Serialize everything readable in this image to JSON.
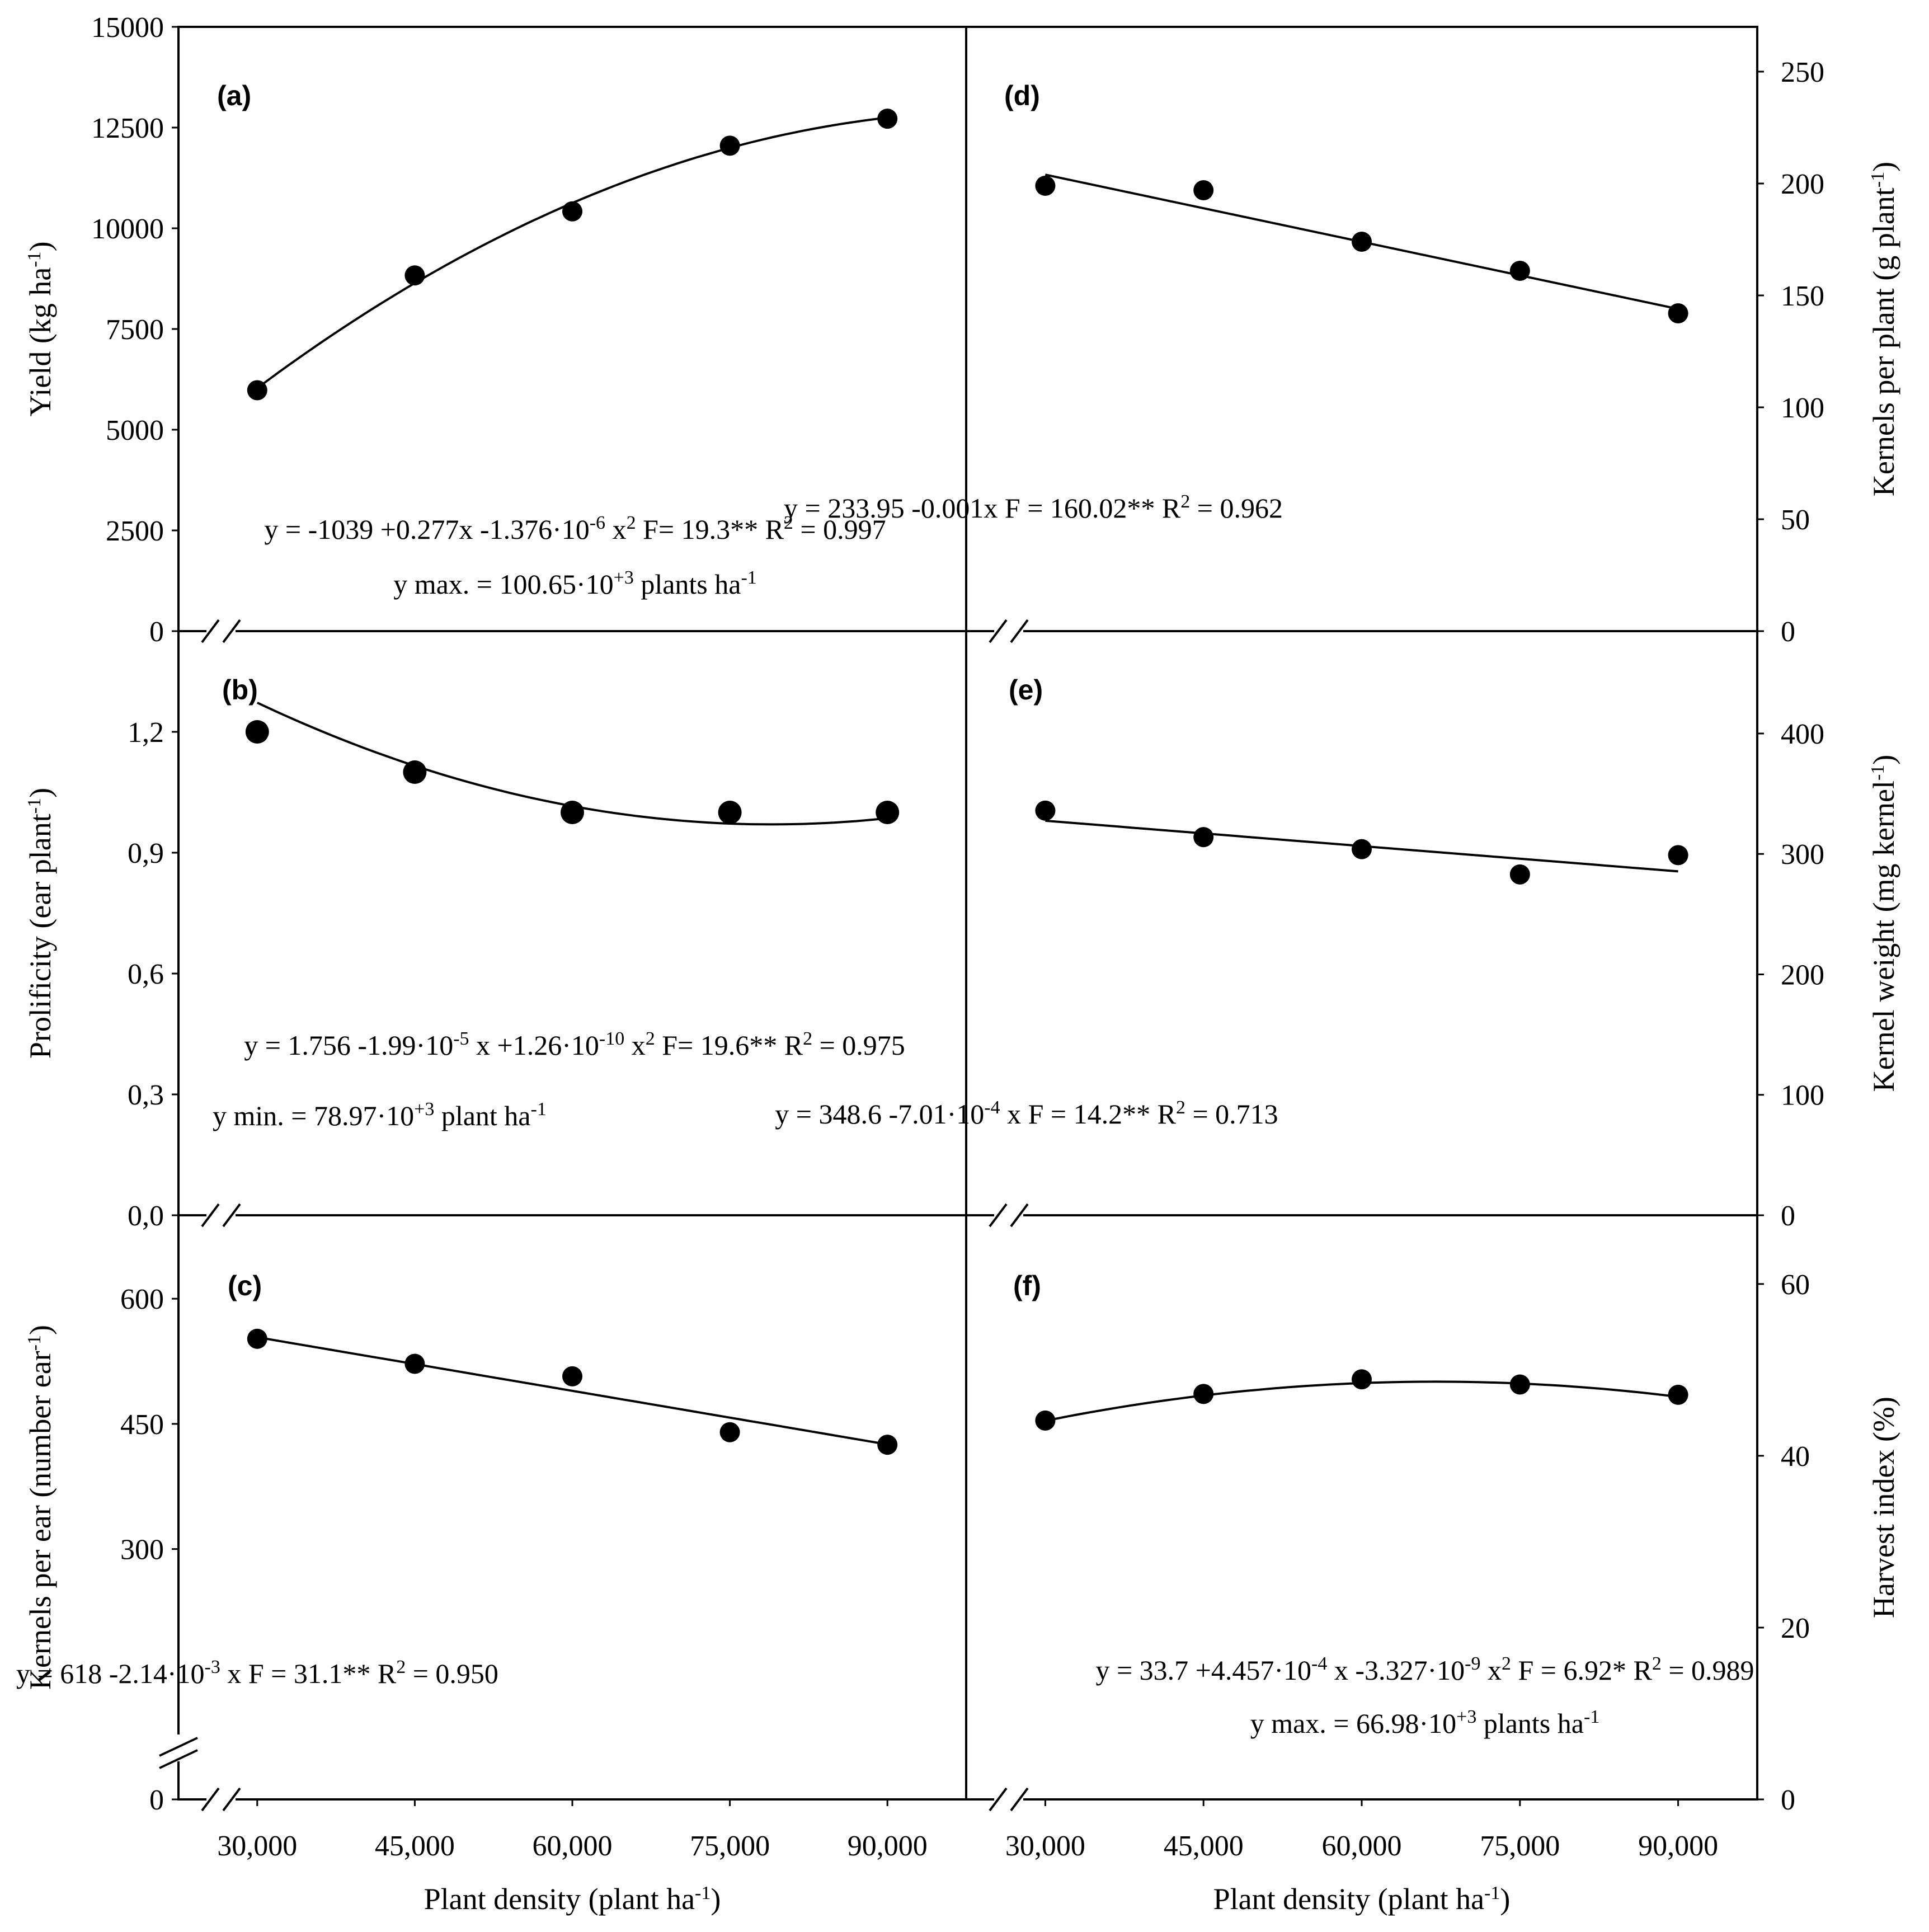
{
  "figure": {
    "x_axis_label": "Plant density (plant ha",
    "x_axis_label_sup": "-1",
    "x_axis_label_end": ")",
    "x_tick_labels": [
      "30,000",
      "45,000",
      "60,000",
      "75,000",
      "90,000"
    ]
  },
  "chart_data": [
    {
      "id": "a",
      "panel_label": "(a)",
      "type": "scatter",
      "ylabel": "Yield (kg ha",
      "ylabel_sup": "-1",
      "ylabel_end": ")",
      "ylim": [
        0,
        15000
      ],
      "yticks": [
        0,
        2500,
        5000,
        7500,
        10000,
        12500,
        15000
      ],
      "ytick_labels": [
        "0",
        "2500",
        "5000",
        "7500",
        "10000",
        "12500",
        "15000"
      ],
      "x": [
        30000,
        45000,
        60000,
        75000,
        90000
      ],
      "y": [
        5980,
        8830,
        10420,
        12050,
        12720
      ],
      "fit": {
        "kind": "quadratic",
        "coef": [
          -1039,
          0.277,
          -1.376e-06
        ],
        "x_range": [
          30000,
          90000
        ]
      },
      "equation": [
        {
          "t": "y = -1039 +0.277x -1.376·10"
        },
        {
          "t": "-6",
          "sup": true
        },
        {
          "t": " x"
        },
        {
          "t": "2",
          "sup": true
        },
        {
          "t": "  F= 19.3**  R"
        },
        {
          "t": "2",
          "sup": true
        },
        {
          "t": " = 0.997"
        }
      ],
      "equation2": [
        {
          "t": "y max. = 100.65·10"
        },
        {
          "t": "+3",
          "sup": true
        },
        {
          "t": " plants ha"
        },
        {
          "t": "-1",
          "sup": true
        }
      ]
    },
    {
      "id": "b",
      "panel_label": "(b)",
      "type": "scatter",
      "ylabel": "Prolificity (ear plant",
      "ylabel_sup": "-1",
      "ylabel_end": ")",
      "ylim": [
        0,
        1.45
      ],
      "yticks": [
        0,
        0.3,
        0.6,
        0.9,
        1.2
      ],
      "ytick_labels": [
        "0,0",
        "0,3",
        "0,6",
        "0,9",
        "1,2"
      ],
      "x": [
        30000,
        45000,
        60000,
        75000,
        90000
      ],
      "y": [
        1.2,
        1.1,
        1.0,
        1.0,
        1.0
      ],
      "fit": {
        "kind": "quadratic",
        "coef": [
          1.756,
          -1.99e-05,
          1.26e-10
        ],
        "x_range": [
          30000,
          90000
        ]
      },
      "equation": [
        {
          "t": "y = 1.756 -1.99·10"
        },
        {
          "t": "-5",
          "sup": true
        },
        {
          "t": " x +1.26·10"
        },
        {
          "t": "-10",
          "sup": true
        },
        {
          "t": " x"
        },
        {
          "t": "2",
          "sup": true
        },
        {
          "t": " F= 19.6** R"
        },
        {
          "t": "2",
          "sup": true
        },
        {
          "t": " = 0.975"
        }
      ],
      "equation2": [
        {
          "t": "y min. = 78.97·10"
        },
        {
          "t": "+3",
          "sup": true
        },
        {
          "t": " plant ha"
        },
        {
          "t": "-1",
          "sup": true
        }
      ]
    },
    {
      "id": "c",
      "panel_label": "(c)",
      "type": "scatter",
      "ylabel": "Kernels per ear (number ear",
      "ylabel_sup": "-1",
      "ylabel_end": ")",
      "ylim": [
        0,
        700
      ],
      "yticks": [
        0,
        300,
        450,
        600
      ],
      "ytick_labels": [
        "0",
        "300",
        "450",
        "600"
      ],
      "x": [
        30000,
        45000,
        60000,
        75000,
        90000
      ],
      "y": [
        552,
        522,
        507,
        440,
        425
      ],
      "fit": {
        "kind": "linear",
        "coef": [
          618,
          -0.00214
        ],
        "x_range": [
          30000,
          90000
        ]
      },
      "equation": [
        {
          "t": "y = 618 -2.14·10"
        },
        {
          "t": "-3",
          "sup": true
        },
        {
          "t": " x  F = 31.1**  R"
        },
        {
          "t": "2",
          "sup": true
        },
        {
          "t": " = 0.950"
        }
      ]
    },
    {
      "id": "d",
      "panel_label": "(d)",
      "type": "scatter",
      "ylabel": "Kernels per plant  (g plant",
      "ylabel_sup": "-1",
      "ylabel_end": ")",
      "ylim": [
        0,
        270
      ],
      "yticks": [
        0,
        50,
        100,
        150,
        200,
        250
      ],
      "ytick_labels": [
        "0",
        "50",
        "100",
        "150",
        "200",
        "250"
      ],
      "x": [
        30000,
        45000,
        60000,
        75000,
        90000
      ],
      "y": [
        199,
        197,
        174,
        161,
        142
      ],
      "fit": {
        "kind": "linear",
        "coef": [
          233.95,
          -0.001
        ],
        "x_range": [
          30000,
          90000
        ]
      },
      "equation": [
        {
          "t": "y = 233.95 -0.001x  F = 160.02**   R"
        },
        {
          "t": "2",
          "sup": true
        },
        {
          "t": " = 0.962"
        }
      ]
    },
    {
      "id": "e",
      "panel_label": "(e)",
      "type": "scatter",
      "ylabel": "Kernel weight   (mg kernel",
      "ylabel_sup": "-1",
      "ylabel_end": ")",
      "ylim": [
        0,
        485
      ],
      "yticks": [
        0,
        100,
        200,
        300,
        400
      ],
      "ytick_labels": [
        "0",
        "100",
        "200",
        "300",
        "400"
      ],
      "x": [
        30000,
        45000,
        60000,
        75000,
        90000
      ],
      "y": [
        336,
        314,
        304,
        283,
        299
      ],
      "fit": {
        "kind": "linear",
        "coef": [
          348.6,
          -0.000701
        ],
        "x_range": [
          30000,
          90000
        ]
      },
      "equation": [
        {
          "t": "y = 348.6 -7.01·10"
        },
        {
          "t": "-4",
          "sup": true
        },
        {
          "t": " x   F = 14.2**  R"
        },
        {
          "t": "2",
          "sup": true
        },
        {
          "t": " = 0.713"
        }
      ]
    },
    {
      "id": "f",
      "panel_label": "(f)",
      "type": "scatter",
      "ylabel": "Harvest index (%)",
      "ylabel_sup": "",
      "ylabel_end": "",
      "ylim": [
        0,
        68
      ],
      "yticks": [
        0,
        20,
        40,
        60
      ],
      "ytick_labels": [
        "0",
        "20",
        "40",
        "60"
      ],
      "x": [
        30000,
        45000,
        60000,
        75000,
        90000
      ],
      "y": [
        44.1,
        47.2,
        48.9,
        48.3,
        47.1
      ],
      "fit": {
        "kind": "quadratic",
        "coef": [
          33.7,
          0.0004457,
          -3.327e-09
        ],
        "x_range": [
          30000,
          90000
        ]
      },
      "equation": [
        {
          "t": "y = 33.7 +4.457·10"
        },
        {
          "t": "-4",
          "sup": true
        },
        {
          "t": " x -3.327·10"
        },
        {
          "t": "-9",
          "sup": true
        },
        {
          "t": " x"
        },
        {
          "t": "2",
          "sup": true
        },
        {
          "t": "  F = 6.92*  R"
        },
        {
          "t": "2",
          "sup": true
        },
        {
          "t": " = 0.989"
        }
      ],
      "equation2": [
        {
          "t": "y max. = 66.98·10"
        },
        {
          "t": "+3",
          "sup": true
        },
        {
          "t": " plants ha"
        },
        {
          "t": "-1",
          "sup": true
        }
      ]
    }
  ]
}
